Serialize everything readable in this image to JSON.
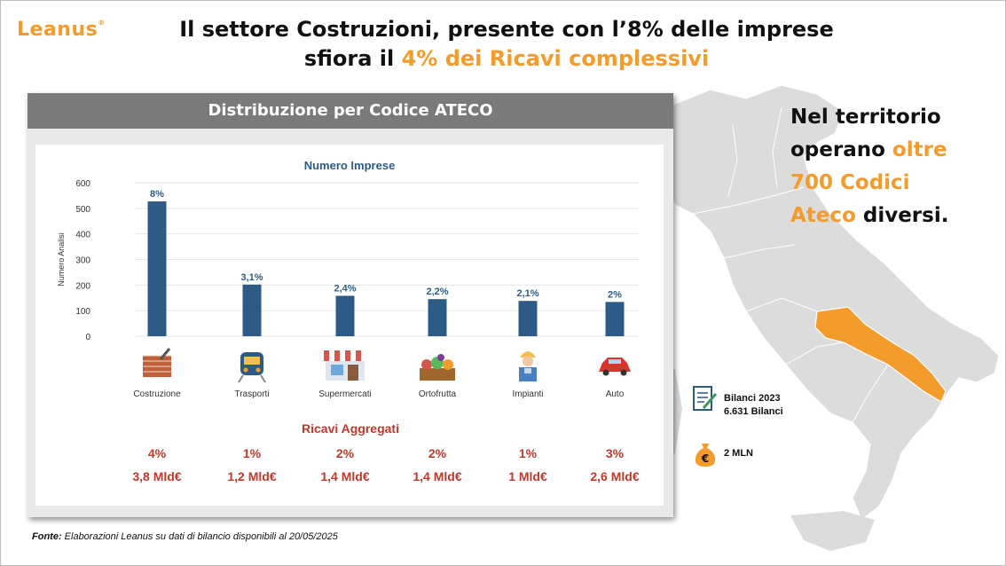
{
  "logo": "Leanus",
  "title": {
    "line1": "Il settore Costruzioni, presente con l’8% delle imprese",
    "line2_pre": "sfiora il ",
    "line2_hl": "4% dei Ricavi complessivi"
  },
  "territory": {
    "t1": "Nel territorio",
    "t2_pre": "operano ",
    "t2_hl": "oltre",
    "t3_hl": "700 Codici",
    "t4_hl": "Ateco",
    "t4_post": " diversi."
  },
  "panel_title": "Distribuzione per Codice ATECO",
  "info": {
    "bilanci_year": "Bilanci 2023",
    "bilanci_count": "6.631 Bilanci",
    "mln": "2 MLN"
  },
  "fonte": {
    "label": "Fonte:",
    "text": " Elaborazioni Leanus su dati di bilancio disponibili al 20/05/2025"
  },
  "colors": {
    "bar": "#2e5b86",
    "accent": "#f39c2b",
    "red": "#c0392b",
    "header": "#7a7a7a",
    "map": "#dcdcdc",
    "highlight_region": "#f39c2b"
  },
  "icons": [
    "brick-wall-icon",
    "train-icon",
    "shop-icon",
    "vegetables-crate-icon",
    "worker-icon",
    "car-icon"
  ],
  "chart_data": {
    "type": "bar",
    "title": "Numero Imprese",
    "ylabel": "Numero Analisi",
    "xlabel": "",
    "ylim": [
      0,
      600
    ],
    "yticks": [
      0,
      100,
      200,
      300,
      400,
      500,
      600
    ],
    "grid": true,
    "categories": [
      "Costruzione",
      "Trasporti",
      "Supermercati",
      "Ortofrutta",
      "Impianti",
      "Auto"
    ],
    "values": [
      527,
      202,
      158,
      145,
      138,
      134
    ],
    "data_labels": [
      "8%",
      "3,1%",
      "2,4%",
      "2,2%",
      "2,1%",
      "2%"
    ],
    "ricavi": {
      "title": "Ricavi Aggregati",
      "percent": [
        "4%",
        "1%",
        "2%",
        "2%",
        "1%",
        "3%"
      ],
      "amount": [
        "3,8 Mld€",
        "1,2 Mld€",
        "1,4 Mld€",
        "1,4 Mld€",
        "1 Mld€",
        "2,6 Mld€"
      ]
    }
  }
}
